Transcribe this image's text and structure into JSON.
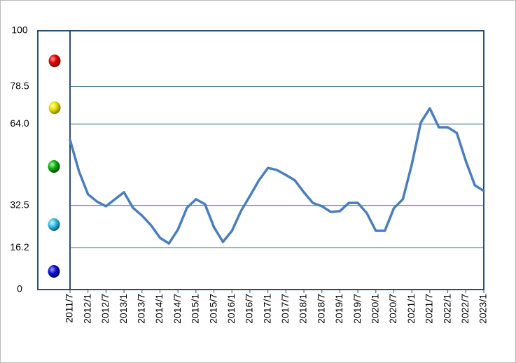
{
  "chart_data": {
    "type": "line",
    "categories": [
      "2011/7",
      null,
      "2012/1",
      null,
      "2012/7",
      null,
      "2013/1",
      null,
      "2013/7",
      null,
      "2014/1",
      null,
      "2014/7",
      null,
      "2015/1",
      null,
      "2015/7",
      null,
      "2016/1",
      null,
      "2016/7",
      null,
      "2017/1",
      null,
      "2017/7",
      null,
      "2018/1",
      null,
      "2018/7",
      null,
      "2019/1",
      null,
      "2019/7",
      null,
      "2020/1",
      null,
      "2020/7",
      null,
      "2021/1",
      null,
      "2021/7",
      null,
      "2022/1",
      null,
      "2022/7",
      null,
      "2023/1"
    ],
    "values": [
      57.8,
      45.7,
      36.8,
      34,
      32.2,
      34.9,
      37.6,
      31.6,
      28.6,
      24.9,
      20,
      17.8,
      23.2,
      31.6,
      34.9,
      33,
      24.1,
      18.4,
      22.7,
      30.3,
      36.2,
      42.2,
      47,
      46.2,
      44.3,
      42.2,
      37.6,
      33.5,
      32.2,
      30,
      30.3,
      33.5,
      33.5,
      29.5,
      22.7,
      22.7,
      31.4,
      34.9,
      48.4,
      64.6,
      70,
      62.7,
      62.7,
      60.5,
      49.7,
      40.3,
      38.1
    ],
    "color": "#4a7ebb",
    "ylim": [
      0,
      100
    ],
    "yticks": [
      0,
      16.2,
      32.5,
      {
        "value": 64,
        "label": "64.0"
      },
      78.5,
      100
    ],
    "grid": true
  }
}
